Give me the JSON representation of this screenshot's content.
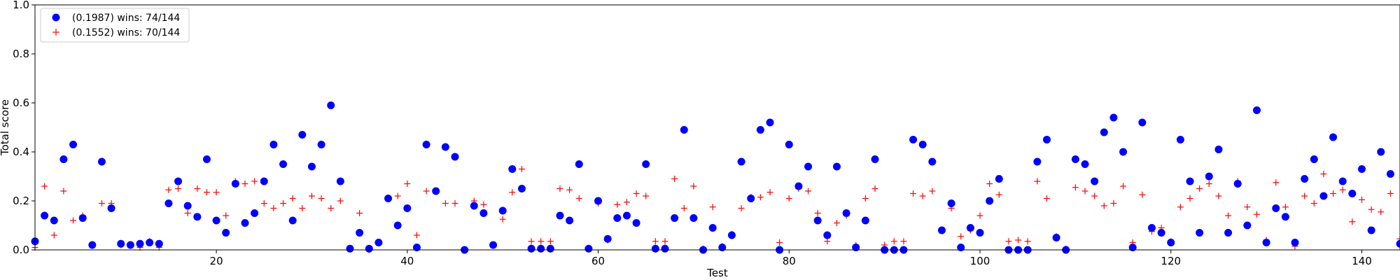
{
  "chart_data": {
    "type": "scatter",
    "title": "",
    "xlabel": "Test",
    "ylabel": "Total score",
    "xlim": [
      1,
      144
    ],
    "ylim": [
      0,
      1.0
    ],
    "x_ticks": [
      20,
      40,
      60,
      80,
      100,
      120,
      140
    ],
    "y_ticks": [
      "0.0",
      "0.2",
      "0.4",
      "0.6",
      "0.8",
      "1.0"
    ],
    "legend_position": "top-left",
    "series": [
      {
        "name": "(0.1987) wins: 74/144",
        "marker": "circle",
        "color": "#0000ff",
        "values": [
          0.035,
          0.14,
          0.12,
          0.37,
          0.43,
          0.13,
          0.02,
          0.36,
          0.17,
          0.025,
          0.02,
          0.025,
          0.03,
          0.025,
          0.19,
          0.28,
          0.18,
          0.135,
          0.37,
          0.12,
          0.07,
          0.27,
          0.11,
          0.15,
          0.28,
          0.43,
          0.35,
          0.12,
          0.47,
          0.34,
          0.43,
          0.59,
          0.28,
          0.005,
          0.07,
          0.005,
          0.03,
          0.21,
          0.1,
          0.17,
          0.01,
          0.43,
          0.24,
          0.42,
          0.38,
          0.0,
          0.18,
          0.15,
          0.02,
          0.16,
          0.33,
          0.25,
          0.005,
          0.005,
          0.005,
          0.14,
          0.12,
          0.35,
          0.005,
          0.2,
          0.045,
          0.13,
          0.14,
          0.11,
          0.35,
          0.005,
          0.005,
          0.13,
          0.49,
          0.13,
          0.0,
          0.09,
          0.01,
          0.06,
          0.36,
          0.21,
          0.49,
          0.52,
          0.0,
          0.43,
          0.26,
          0.34,
          0.12,
          0.06,
          0.34,
          0.15,
          0.01,
          0.12,
          0.37,
          0.0,
          0.0,
          0.0,
          0.45,
          0.43,
          0.36,
          0.08,
          0.19,
          0.01,
          0.09,
          0.07,
          0.2,
          0.29,
          0.0,
          0.0,
          0.0,
          0.36,
          0.45,
          0.05,
          0.0,
          0.37,
          0.35,
          0.28,
          0.48,
          0.54,
          0.4,
          0.01,
          0.52,
          0.09,
          0.07,
          0.03,
          0.45,
          0.28,
          0.07,
          0.3,
          0.41,
          0.07,
          0.27,
          0.1,
          0.57,
          0.03,
          0.17,
          0.135,
          0.03,
          0.29,
          0.37,
          0.22,
          0.46,
          0.28,
          0.23,
          0.33,
          0.08,
          0.4,
          0.31,
          0.025
        ]
      },
      {
        "name": "(0.1552) wins: 70/144",
        "marker": "plus",
        "color": "#ff0000",
        "values": [
          0.01,
          0.26,
          0.06,
          0.24,
          0.12,
          0.14,
          0.02,
          0.19,
          0.19,
          0.02,
          0.02,
          0.01,
          0.035,
          0.01,
          0.245,
          0.25,
          0.15,
          0.25,
          0.235,
          0.235,
          0.14,
          0.28,
          0.27,
          0.28,
          0.19,
          0.17,
          0.19,
          0.21,
          0.17,
          0.22,
          0.21,
          0.17,
          0.2,
          0.005,
          0.15,
          0.0,
          0.03,
          0.21,
          0.22,
          0.27,
          0.06,
          0.24,
          0.24,
          0.19,
          0.19,
          0.0,
          0.2,
          0.185,
          0.02,
          0.125,
          0.235,
          0.33,
          0.035,
          0.035,
          0.035,
          0.25,
          0.245,
          0.21,
          0.005,
          0.19,
          0.04,
          0.185,
          0.195,
          0.23,
          0.22,
          0.035,
          0.035,
          0.29,
          0.17,
          0.26,
          0.005,
          0.175,
          0.015,
          0.065,
          0.17,
          0.215,
          0.215,
          0.235,
          0.03,
          0.21,
          0.25,
          0.24,
          0.15,
          0.035,
          0.11,
          0.14,
          0.02,
          0.21,
          0.25,
          0.02,
          0.035,
          0.035,
          0.23,
          0.22,
          0.24,
          0.08,
          0.17,
          0.055,
          0.08,
          0.14,
          0.27,
          0.225,
          0.035,
          0.04,
          0.035,
          0.28,
          0.21,
          0.055,
          0.005,
          0.255,
          0.24,
          0.22,
          0.18,
          0.19,
          0.26,
          0.03,
          0.225,
          0.075,
          0.09,
          0.035,
          0.175,
          0.21,
          0.25,
          0.27,
          0.22,
          0.14,
          0.28,
          0.175,
          0.145,
          0.04,
          0.275,
          0.175,
          0.015,
          0.22,
          0.19,
          0.31,
          0.23,
          0.245,
          0.115,
          0.205,
          0.165,
          0.155,
          0.23,
          0.045
        ]
      }
    ]
  }
}
